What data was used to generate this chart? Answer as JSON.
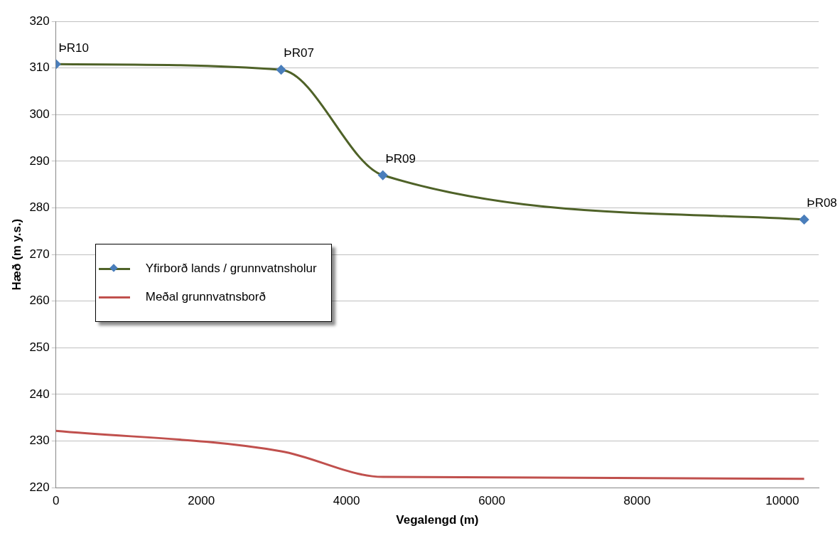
{
  "chart_data": {
    "type": "line",
    "xlabel": "Vegalengd (m)",
    "ylabel": "Hæð (m y.s.)",
    "xlim": [
      0,
      10500
    ],
    "xticks": [
      0,
      2000,
      4000,
      6000,
      8000,
      10000
    ],
    "ylim": [
      220,
      320
    ],
    "yticks": [
      220,
      230,
      240,
      250,
      260,
      270,
      280,
      290,
      300,
      310,
      320
    ],
    "grid": "y",
    "legend": "center left",
    "line_style": "solid",
    "x": [
      0,
      3100,
      4500,
      10300
    ],
    "series": [
      {
        "name": "Yfirborð lands / grunnvatnsholur",
        "color": "#4f6228",
        "marker": "diamond",
        "values": [
          310.8,
          309.6,
          287,
          277.5
        ]
      },
      {
        "name": "Meðal grunnvatnsborð",
        "color": "#c0504d",
        "marker": "none",
        "values": [
          232.2,
          227.8,
          222.3,
          221.9
        ]
      }
    ],
    "annotations": [
      {
        "text": "ÞR10",
        "x": 0,
        "y": 310.8
      },
      {
        "text": "ÞR07",
        "x": 3100,
        "y": 309.6
      },
      {
        "text": "ÞR09",
        "x": 4500,
        "y": 287
      },
      {
        "text": "ÞR08",
        "x": 10300,
        "y": 277.5
      }
    ]
  }
}
